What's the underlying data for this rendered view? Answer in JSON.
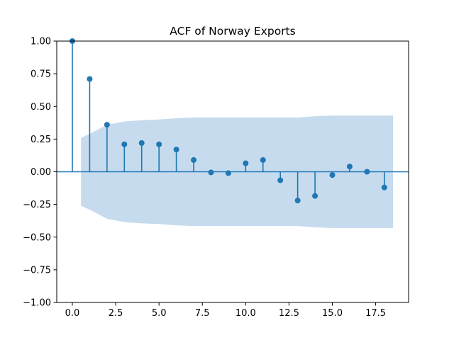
{
  "chart_data": {
    "type": "scatter",
    "title": "ACF of Norway Exports",
    "xlabel": "",
    "ylabel": "",
    "xlim": [
      -0.9,
      19.4
    ],
    "ylim": [
      -1.0,
      1.0
    ],
    "grid": false,
    "x_ticks": [
      0.0,
      2.5,
      5.0,
      7.5,
      10.0,
      12.5,
      15.0,
      17.5
    ],
    "x_tick_labels": [
      "0.0",
      "2.5",
      "5.0",
      "7.5",
      "10.0",
      "12.5",
      "15.0",
      "17.5"
    ],
    "y_ticks": [
      -1.0,
      -0.75,
      -0.5,
      -0.25,
      0.0,
      0.25,
      0.5,
      0.75,
      1.0
    ],
    "y_tick_labels": [
      "−1.00",
      "−0.75",
      "−0.50",
      "−0.25",
      "0.00",
      "0.25",
      "0.50",
      "0.75",
      "1.00"
    ],
    "lags": [
      0,
      1,
      2,
      3,
      4,
      5,
      6,
      7,
      8,
      9,
      10,
      11,
      12,
      13,
      14,
      15,
      16,
      17,
      18
    ],
    "acf": [
      1.0,
      0.71,
      0.36,
      0.21,
      0.22,
      0.21,
      0.17,
      0.09,
      -0.005,
      -0.01,
      0.065,
      0.09,
      -0.065,
      -0.22,
      -0.185,
      -0.025,
      0.04,
      0.0,
      -0.12
    ],
    "confint_x": [
      0.5,
      1,
      2,
      3,
      4,
      5,
      6,
      7,
      8,
      9,
      10,
      11,
      12,
      13,
      14,
      15,
      16,
      17,
      18,
      18.5
    ],
    "confint_upper": [
      0.26,
      0.29,
      0.36,
      0.385,
      0.395,
      0.4,
      0.41,
      0.415,
      0.415,
      0.415,
      0.415,
      0.415,
      0.415,
      0.415,
      0.425,
      0.43,
      0.43,
      0.43,
      0.43,
      0.43
    ],
    "colors": {
      "stem": "#1f77b4",
      "marker": "#1f77b4",
      "baseline": "#1f77b4",
      "confint": "#c6dbee"
    }
  }
}
